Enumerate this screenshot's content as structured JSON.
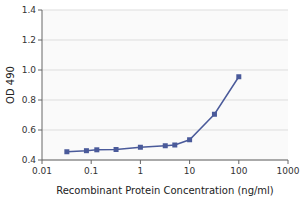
{
  "chart_data": {
    "type": "line",
    "x": [
      0.032,
      0.08,
      0.13,
      0.32,
      1.0,
      3.2,
      5.0,
      10.0,
      32.0,
      100.0
    ],
    "values": [
      0.455,
      0.462,
      0.468,
      0.47,
      0.485,
      0.495,
      0.5,
      0.535,
      0.705,
      0.955
    ],
    "xlabel": "Recombinant Protein Concentration (ng/ml)",
    "ylabel": "OD 490",
    "xlim": [
      0.01,
      1000
    ],
    "ylim": [
      0.4,
      1.4
    ],
    "xticks": [
      0.01,
      0.1,
      1,
      10,
      100,
      1000
    ],
    "yticks": [
      0.4,
      0.6,
      0.8,
      {
        "value": 1.0,
        "label": "1.0"
      },
      1.2,
      1.4
    ],
    "log": "x",
    "grid": true,
    "color": "#4a5a9a",
    "marker": "square"
  }
}
